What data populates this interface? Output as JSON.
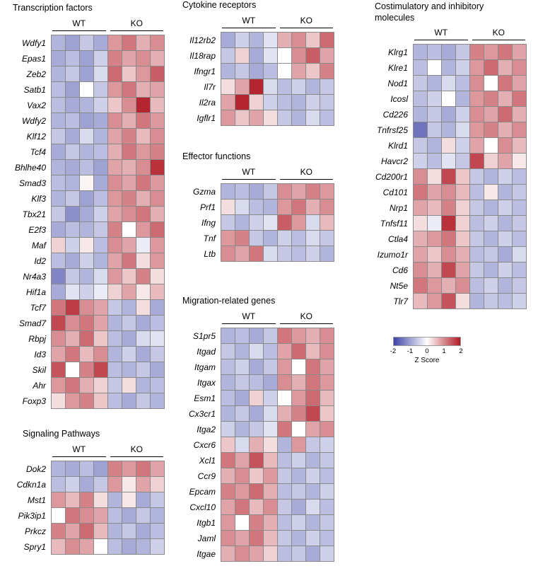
{
  "colormap": {
    "neg": "#3d44a6",
    "mid": "#ffffff",
    "pos": "#b11a24",
    "grid_line": "#8a8a8a"
  },
  "legend": {
    "ticks": [
      "-2",
      "-1",
      "0",
      "1",
      "2"
    ],
    "label": "Z Score"
  },
  "chart_data": [
    {
      "type": "heatmap",
      "title": "Transcription factors",
      "groups": [
        "WT",
        "KO"
      ],
      "zlim": [
        -2,
        2
      ],
      "genes": [
        "Wdfy1",
        "Epas1",
        "Zeb2",
        "Satb1",
        "Vax2",
        "Wdfy2",
        "Klf12",
        "Tcf4",
        "Bhlhe40",
        "Smad3",
        "Klf3",
        "Tbx21",
        "E2f3",
        "Maf",
        "Id2",
        "Nr4a3",
        "Hif1a",
        "Tcf7",
        "Smad7",
        "Rbpj",
        "Id3",
        "Skil",
        "Ahr",
        "Foxp3"
      ],
      "values": [
        [
          -0.8,
          -1.0,
          -0.6,
          -0.9,
          0.9,
          1.2,
          0.7,
          1.0
        ],
        [
          -0.9,
          -0.7,
          -1.0,
          -0.5,
          1.1,
          0.8,
          1.0,
          0.7
        ],
        [
          -0.8,
          -0.6,
          -1.0,
          -0.4,
          1.3,
          0.5,
          0.9,
          1.4
        ],
        [
          -0.7,
          -1.0,
          0.0,
          -0.6,
          0.9,
          1.2,
          0.7,
          0.8
        ],
        [
          -0.7,
          -0.9,
          -0.8,
          -0.5,
          0.5,
          1.0,
          1.9,
          0.6
        ],
        [
          -0.8,
          -0.7,
          -1.0,
          -0.9,
          1.0,
          0.7,
          1.2,
          0.9
        ],
        [
          -0.6,
          -0.9,
          -0.4,
          -0.8,
          0.8,
          1.1,
          0.6,
          1.0
        ],
        [
          -0.9,
          -0.6,
          -0.8,
          -0.7,
          0.7,
          1.2,
          0.9,
          1.1
        ],
        [
          -0.8,
          -0.9,
          -0.7,
          -1.0,
          0.8,
          0.7,
          1.0,
          1.8
        ],
        [
          -0.7,
          -0.8,
          0.1,
          -0.9,
          1.0,
          0.8,
          1.2,
          0.9
        ],
        [
          -0.8,
          -0.6,
          -1.0,
          -0.7,
          0.9,
          1.1,
          0.7,
          1.0
        ],
        [
          -0.6,
          -1.2,
          -0.9,
          -0.5,
          0.8,
          1.0,
          1.2,
          0.7
        ],
        [
          -0.9,
          -0.7,
          -0.8,
          -0.6,
          1.1,
          0.0,
          0.9,
          1.3
        ],
        [
          0.4,
          -0.5,
          0.2,
          -0.7,
          1.0,
          0.8,
          -0.2,
          0.9
        ],
        [
          -0.7,
          -0.9,
          -0.5,
          -0.8,
          0.8,
          1.2,
          0.3,
          0.9
        ],
        [
          -1.3,
          -0.6,
          -0.8,
          -0.4,
          0.9,
          0.5,
          1.1,
          0.3
        ],
        [
          -0.9,
          -0.3,
          -0.5,
          -0.2,
          0.4,
          0.8,
          0.2,
          0.6
        ],
        [
          1.2,
          1.7,
          1.0,
          0.8,
          -0.6,
          -0.8,
          0.3,
          -0.9
        ],
        [
          1.6,
          1.0,
          1.2,
          0.8,
          -0.8,
          -0.6,
          -0.9,
          -0.7
        ],
        [
          1.0,
          0.7,
          1.3,
          0.5,
          -0.7,
          -0.9,
          -0.4,
          -0.3
        ],
        [
          0.8,
          1.2,
          0.6,
          1.0,
          -0.8,
          -0.5,
          -0.9,
          -0.6
        ],
        [
          1.5,
          0.0,
          1.1,
          1.6,
          -0.7,
          -0.8,
          -0.6,
          -0.9
        ],
        [
          0.9,
          1.2,
          0.7,
          0.4,
          -0.6,
          0.3,
          -0.8,
          -0.7
        ],
        [
          0.3,
          0.9,
          1.1,
          0.5,
          -0.7,
          -0.9,
          -0.6,
          -0.8
        ]
      ]
    },
    {
      "type": "heatmap",
      "title": "Signaling Pathways",
      "groups": [
        "WT",
        "KO"
      ],
      "zlim": [
        -2,
        2
      ],
      "genes": [
        "Dok2",
        "Cdkn1a",
        "Mst1",
        "Pik3ip1",
        "Prkcz",
        "Spry1"
      ],
      "values": [
        [
          -0.8,
          -0.9,
          -0.7,
          -1.0,
          1.1,
          0.9,
          1.2,
          0.8
        ],
        [
          -0.7,
          -0.5,
          -0.9,
          -0.6,
          0.9,
          0.2,
          0.8,
          0.4
        ],
        [
          0.9,
          0.6,
          1.1,
          0.3,
          -0.8,
          0.2,
          -0.9,
          -0.6
        ],
        [
          0.0,
          1.2,
          1.0,
          0.8,
          -0.7,
          -0.9,
          -0.6,
          -0.8
        ],
        [
          1.1,
          0.8,
          1.3,
          0.6,
          -0.8,
          -0.6,
          -0.9,
          -0.7
        ],
        [
          0.6,
          1.0,
          0.8,
          0.0,
          -0.7,
          -0.9,
          -0.8,
          -0.5
        ]
      ]
    },
    {
      "type": "heatmap",
      "title": "Cytokine receptors",
      "groups": [
        "WT",
        "KO"
      ],
      "zlim": [
        -2,
        2
      ],
      "genes": [
        "Il12rb2",
        "Il18rap",
        "Ifngr1",
        "Il7r",
        "Il2ra",
        "Igflr1"
      ],
      "values": [
        [
          -0.9,
          -0.5,
          -0.8,
          -0.3,
          0.7,
          1.0,
          0.5,
          1.3
        ],
        [
          -0.6,
          0.4,
          -0.9,
          -0.3,
          0.0,
          1.0,
          1.4,
          0.8
        ],
        [
          -0.8,
          -0.6,
          -0.9,
          -0.7,
          0.0,
          0.8,
          0.5,
          1.1
        ],
        [
          0.3,
          0.8,
          1.9,
          -0.4,
          -0.7,
          -0.5,
          -0.8,
          -0.6
        ],
        [
          0.8,
          1.9,
          0.4,
          -0.5,
          -0.7,
          -0.8,
          -0.5,
          -0.6
        ],
        [
          0.9,
          0.5,
          0.8,
          0.3,
          -0.6,
          -0.8,
          -0.4,
          -0.7
        ]
      ]
    },
    {
      "type": "heatmap",
      "title": "Effector functions",
      "groups": [
        "WT",
        "KO"
      ],
      "zlim": [
        -2,
        2
      ],
      "genes": [
        "Gzma",
        "Prf1",
        "Ifng",
        "Tnf",
        "Ltb"
      ],
      "values": [
        [
          -0.8,
          -0.7,
          -0.9,
          -0.6,
          1.0,
          0.8,
          1.1,
          0.9
        ],
        [
          0.3,
          -0.4,
          -0.7,
          -0.8,
          0.9,
          1.2,
          0.7,
          1.0
        ],
        [
          -0.6,
          -0.8,
          -0.5,
          -0.3,
          1.4,
          0.9,
          -0.4,
          0.6
        ],
        [
          0.9,
          1.1,
          -0.6,
          -0.8,
          -0.5,
          -0.7,
          -0.4,
          -0.6
        ],
        [
          1.0,
          0.8,
          1.2,
          -0.4,
          -0.6,
          -0.7,
          -0.5,
          -0.8
        ]
      ]
    },
    {
      "type": "heatmap",
      "title": "Migration-related genes",
      "groups": [
        "WT",
        "KO"
      ],
      "zlim": [
        -2,
        2
      ],
      "genes": [
        "S1pr5",
        "Itgad",
        "Itgam",
        "Itgax",
        "Esm1",
        "Cx3cr1",
        "Itga2",
        "Cxcr6",
        "Xcl1",
        "Ccr9",
        "Epcam",
        "Cxcl10",
        "Itgb1",
        "Jaml",
        "Itgae"
      ],
      "values": [
        [
          -0.8,
          -0.7,
          -0.9,
          -0.6,
          1.2,
          0.9,
          0.7,
          1.0
        ],
        [
          -0.6,
          -0.8,
          -0.4,
          -0.7,
          0.8,
          1.3,
          0.6,
          1.0
        ],
        [
          -0.7,
          -0.5,
          -0.9,
          -0.6,
          0.9,
          0.0,
          1.2,
          0.8
        ],
        [
          -0.8,
          -0.6,
          -0.7,
          -0.9,
          1.0,
          0.7,
          1.2,
          0.9
        ],
        [
          -0.7,
          -0.9,
          0.4,
          -0.5,
          0.0,
          0.9,
          1.3,
          0.6
        ],
        [
          -0.8,
          -0.6,
          -0.9,
          -0.4,
          0.7,
          1.1,
          1.6,
          0.5
        ],
        [
          -0.5,
          -0.8,
          -0.6,
          -0.3,
          1.2,
          0.0,
          0.8,
          1.0
        ],
        [
          0.5,
          -0.4,
          0.7,
          0.3,
          -0.8,
          0.9,
          -0.6,
          -0.5
        ],
        [
          1.2,
          0.8,
          1.5,
          0.6,
          -0.7,
          -0.5,
          -0.8,
          -0.6
        ],
        [
          0.7,
          1.0,
          0.5,
          0.9,
          -0.6,
          -0.8,
          -0.5,
          -0.7
        ],
        [
          1.1,
          0.9,
          1.3,
          0.7,
          -0.7,
          -0.6,
          -0.8,
          -0.5
        ],
        [
          0.8,
          1.2,
          0.6,
          1.0,
          -0.6,
          -0.9,
          -0.4,
          -0.7
        ],
        [
          0.9,
          0.0,
          1.1,
          0.7,
          -0.7,
          -0.5,
          -0.8,
          -0.6
        ],
        [
          1.0,
          0.8,
          1.2,
          0.6,
          -0.6,
          -0.8,
          -0.5,
          -0.7
        ],
        [
          0.7,
          1.0,
          0.8,
          0.4,
          -0.7,
          -0.6,
          -0.9,
          -0.5
        ]
      ]
    },
    {
      "type": "heatmap",
      "title": "Costimulatory and inhibitory molecules",
      "groups": [
        "WT",
        "KO"
      ],
      "zlim": [
        -2,
        2
      ],
      "genes": [
        "Klrg1",
        "Klre1",
        "Nod1",
        "Icosl",
        "Cd226",
        "Tnfrsf25",
        "Klrd1",
        "Havcr2",
        "Cd200r1",
        "Cd101",
        "Nrp1",
        "Tnfsf11",
        "Ctla4",
        "Izumo1r",
        "Cd6",
        "Nt5e",
        "Tlr7"
      ],
      "values": [
        [
          -0.8,
          -0.7,
          -0.9,
          -0.6,
          1.1,
          0.9,
          1.2,
          0.8
        ],
        [
          -0.7,
          0.0,
          -0.8,
          -0.5,
          0.9,
          1.3,
          0.7,
          1.0
        ],
        [
          -0.6,
          -0.8,
          -0.4,
          -0.7,
          1.0,
          0.0,
          1.2,
          0.8
        ],
        [
          -0.7,
          -0.5,
          0.0,
          -0.8,
          0.9,
          1.1,
          0.7,
          1.2
        ],
        [
          -0.8,
          -0.6,
          -0.9,
          -0.5,
          1.0,
          0.8,
          1.3,
          0.7
        ],
        [
          -1.5,
          -0.6,
          -0.8,
          -0.4,
          0.9,
          1.1,
          0.7,
          1.0
        ],
        [
          -0.6,
          -0.8,
          0.3,
          -0.5,
          0.8,
          0.0,
          1.0,
          0.6
        ],
        [
          -0.5,
          -0.7,
          -0.3,
          -0.6,
          1.6,
          0.4,
          0.8,
          0.2
        ],
        [
          1.0,
          0.3,
          1.6,
          0.5,
          -0.6,
          -0.8,
          -0.5,
          -0.7
        ],
        [
          1.2,
          0.8,
          1.0,
          0.6,
          -0.7,
          0.2,
          -0.8,
          -0.6
        ],
        [
          0.8,
          0.6,
          1.1,
          0.4,
          -0.6,
          -0.8,
          -0.5,
          -0.7
        ],
        [
          0.3,
          -0.2,
          1.8,
          0.4,
          -0.7,
          -0.5,
          -0.8,
          -0.6
        ],
        [
          0.7,
          0.9,
          1.2,
          0.5,
          -0.6,
          -0.8,
          -0.5,
          -0.7
        ],
        [
          0.8,
          0.5,
          1.0,
          0.7,
          -0.7,
          -0.6,
          -0.9,
          -0.4
        ],
        [
          1.0,
          0.7,
          1.6,
          0.8,
          -0.6,
          -0.8,
          -0.5,
          -0.7
        ],
        [
          1.2,
          0.9,
          0.7,
          1.0,
          -0.7,
          -0.5,
          -0.8,
          -0.6
        ],
        [
          0.6,
          0.9,
          1.5,
          0.3,
          -0.8,
          -0.6,
          -0.7,
          -0.5
        ]
      ]
    }
  ]
}
